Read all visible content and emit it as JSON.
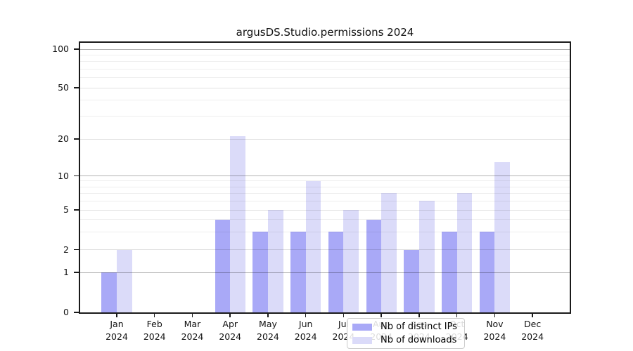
{
  "chart_data": {
    "type": "bar",
    "title": "argusDS.Studio.permissions 2024",
    "categories": [
      "Jan",
      "Feb",
      "Mar",
      "Apr",
      "May",
      "Jun",
      "Jul",
      "Aug",
      "Sep",
      "Oct",
      "Nov",
      "Dec"
    ],
    "year_label": "2024",
    "series": [
      {
        "name": "Nb of distinct IPs",
        "color": "#a9a9f7",
        "values": [
          1,
          0,
          0,
          4,
          3,
          3,
          3,
          4,
          2,
          3,
          3,
          0
        ]
      },
      {
        "name": "Nb of downloads",
        "color": "#dbdbf9",
        "values": [
          2,
          0,
          0,
          21,
          5,
          9,
          5,
          7,
          6,
          7,
          13,
          0
        ]
      }
    ],
    "xlabel": "",
    "ylabel": "",
    "yticks": [
      0,
      1,
      2,
      5,
      10,
      20,
      50,
      100
    ],
    "major_grid_values": [
      1,
      10,
      100
    ],
    "labeled_grid_values": [
      2,
      5,
      20,
      50
    ],
    "minor_grid_values": [
      3,
      4,
      6,
      7,
      8,
      9,
      30,
      40,
      60,
      70,
      80,
      90
    ],
    "yscale": "log-like (linear 0-1, logarithmic above)",
    "ylim": [
      0,
      112
    ],
    "grid": true,
    "legend_position": "lower center"
  }
}
